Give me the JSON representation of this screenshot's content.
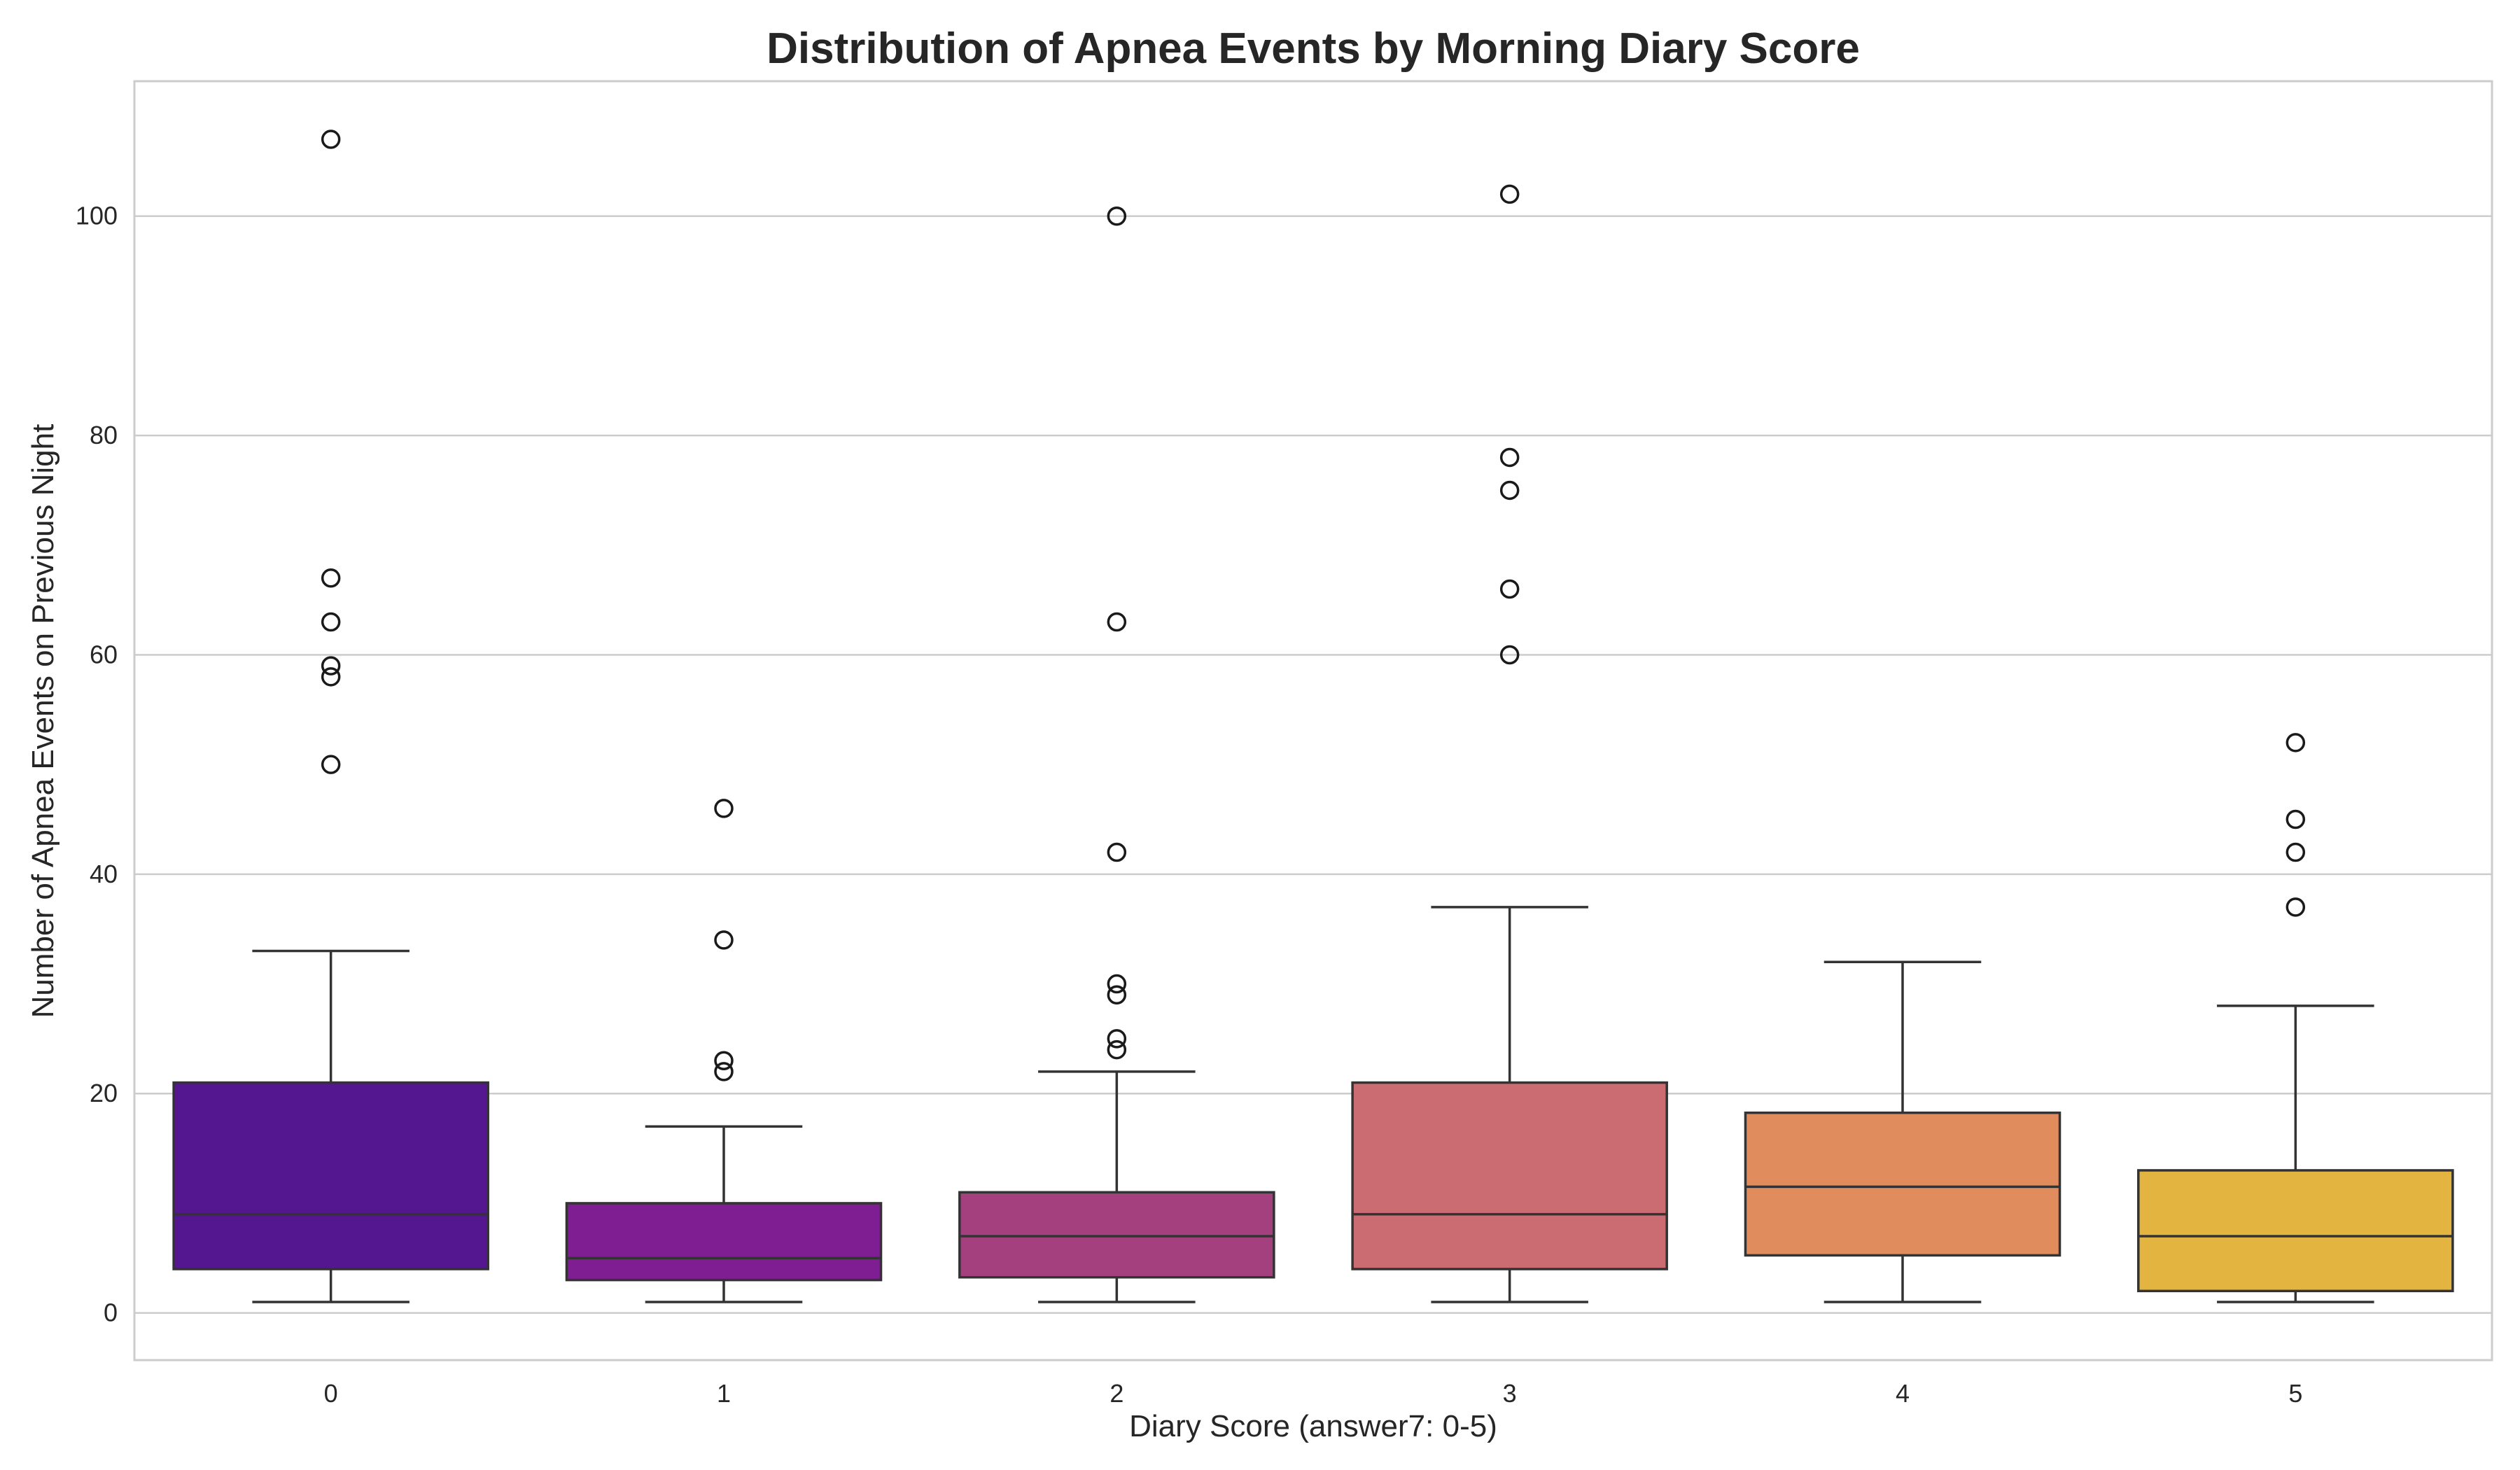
{
  "chart_data": {
    "type": "box",
    "title": "Distribution of Apnea Events by Morning Diary Score",
    "xlabel": "Diary Score (answer7: 0-5)",
    "ylabel": "Number of Apnea Events on Previous Night",
    "ylim": [
      -4.3,
      112.3
    ],
    "yticks": [
      0,
      20,
      40,
      60,
      80,
      100
    ],
    "grid": "horizontal",
    "categories": [
      "0",
      "1",
      "2",
      "3",
      "4",
      "5"
    ],
    "boxes": [
      {
        "category": "0",
        "whisker_low": 1,
        "q1": 4,
        "median": 9,
        "q3": 21,
        "whisker_high": 33,
        "outliers": [
          50,
          58,
          59,
          63,
          67,
          107
        ],
        "color": "#54178f"
      },
      {
        "category": "1",
        "whisker_low": 1,
        "q1": 3,
        "median": 5,
        "q3": 10,
        "whisker_high": 17,
        "outliers": [
          22,
          23,
          34,
          46
        ],
        "color": "#7e1e92"
      },
      {
        "category": "2",
        "whisker_low": 1,
        "q1": 3.25,
        "median": 7,
        "q3": 11,
        "whisker_high": 22,
        "outliers": [
          24,
          25,
          29,
          30,
          42,
          63,
          100
        ],
        "color": "#a5407f"
      },
      {
        "category": "3",
        "whisker_low": 1,
        "q1": 4,
        "median": 9,
        "q3": 21,
        "whisker_high": 37,
        "outliers": [
          60,
          66,
          75,
          78,
          102
        ],
        "color": "#cb6b72"
      },
      {
        "category": "4",
        "whisker_low": 1,
        "q1": 5.25,
        "median": 11.5,
        "q3": 18.25,
        "whisker_high": 32,
        "outliers": [],
        "color": "#e08c5d"
      },
      {
        "category": "5",
        "whisker_low": 1,
        "q1": 2,
        "median": 7,
        "q3": 13,
        "whisker_high": 28,
        "outliers": [
          37,
          42,
          45,
          52
        ],
        "color": "#e4b440"
      }
    ]
  }
}
